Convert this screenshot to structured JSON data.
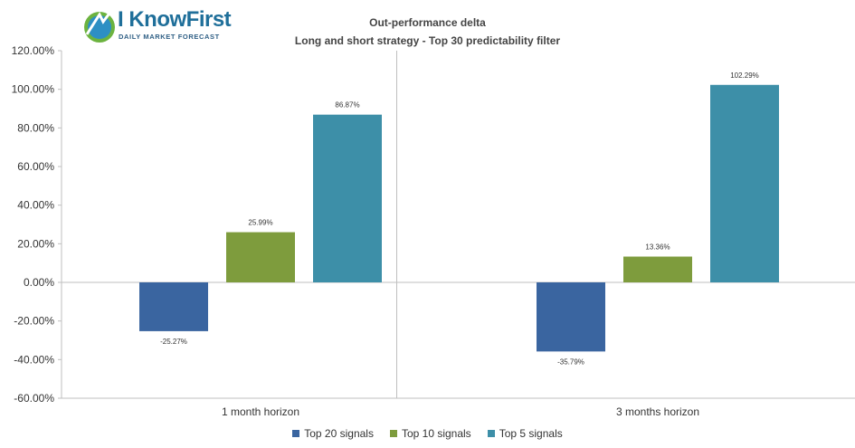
{
  "logo": {
    "wordmark": "I KnowFirst",
    "tagline": "DAILY MARKET FORECAST"
  },
  "chart_data": {
    "type": "bar",
    "title": "Out-performance delta",
    "subtitle": "Long and short strategy - Top 30 predictability filter",
    "categories": [
      "1 month horizon",
      "3 months horizon"
    ],
    "series": [
      {
        "name": "Top 20 signals",
        "color": "#3a65a0",
        "values": [
          -25.27,
          -35.79
        ],
        "labels": [
          "-25.27%",
          "-35.79%"
        ]
      },
      {
        "name": "Top 10 signals",
        "color": "#7e9c3d",
        "values": [
          25.99,
          13.36
        ],
        "labels": [
          "25.99%",
          "13.36%"
        ]
      },
      {
        "name": "Top 5 signals",
        "color": "#3d8fa8",
        "values": [
          86.87,
          102.29
        ],
        "labels": [
          "86.87%",
          "102.29%"
        ]
      }
    ],
    "ylim": [
      -60,
      120
    ],
    "yticks": [
      -60,
      -40,
      -20,
      0,
      20,
      40,
      60,
      80,
      100,
      120
    ],
    "ytick_labels": [
      "-60.00%",
      "-40.00%",
      "-20.00%",
      "0.00%",
      "20.00%",
      "40.00%",
      "60.00%",
      "80.00%",
      "100.00%",
      "120.00%"
    ],
    "xlabel": "",
    "ylabel": "",
    "grid": false,
    "legend_position": "bottom"
  }
}
